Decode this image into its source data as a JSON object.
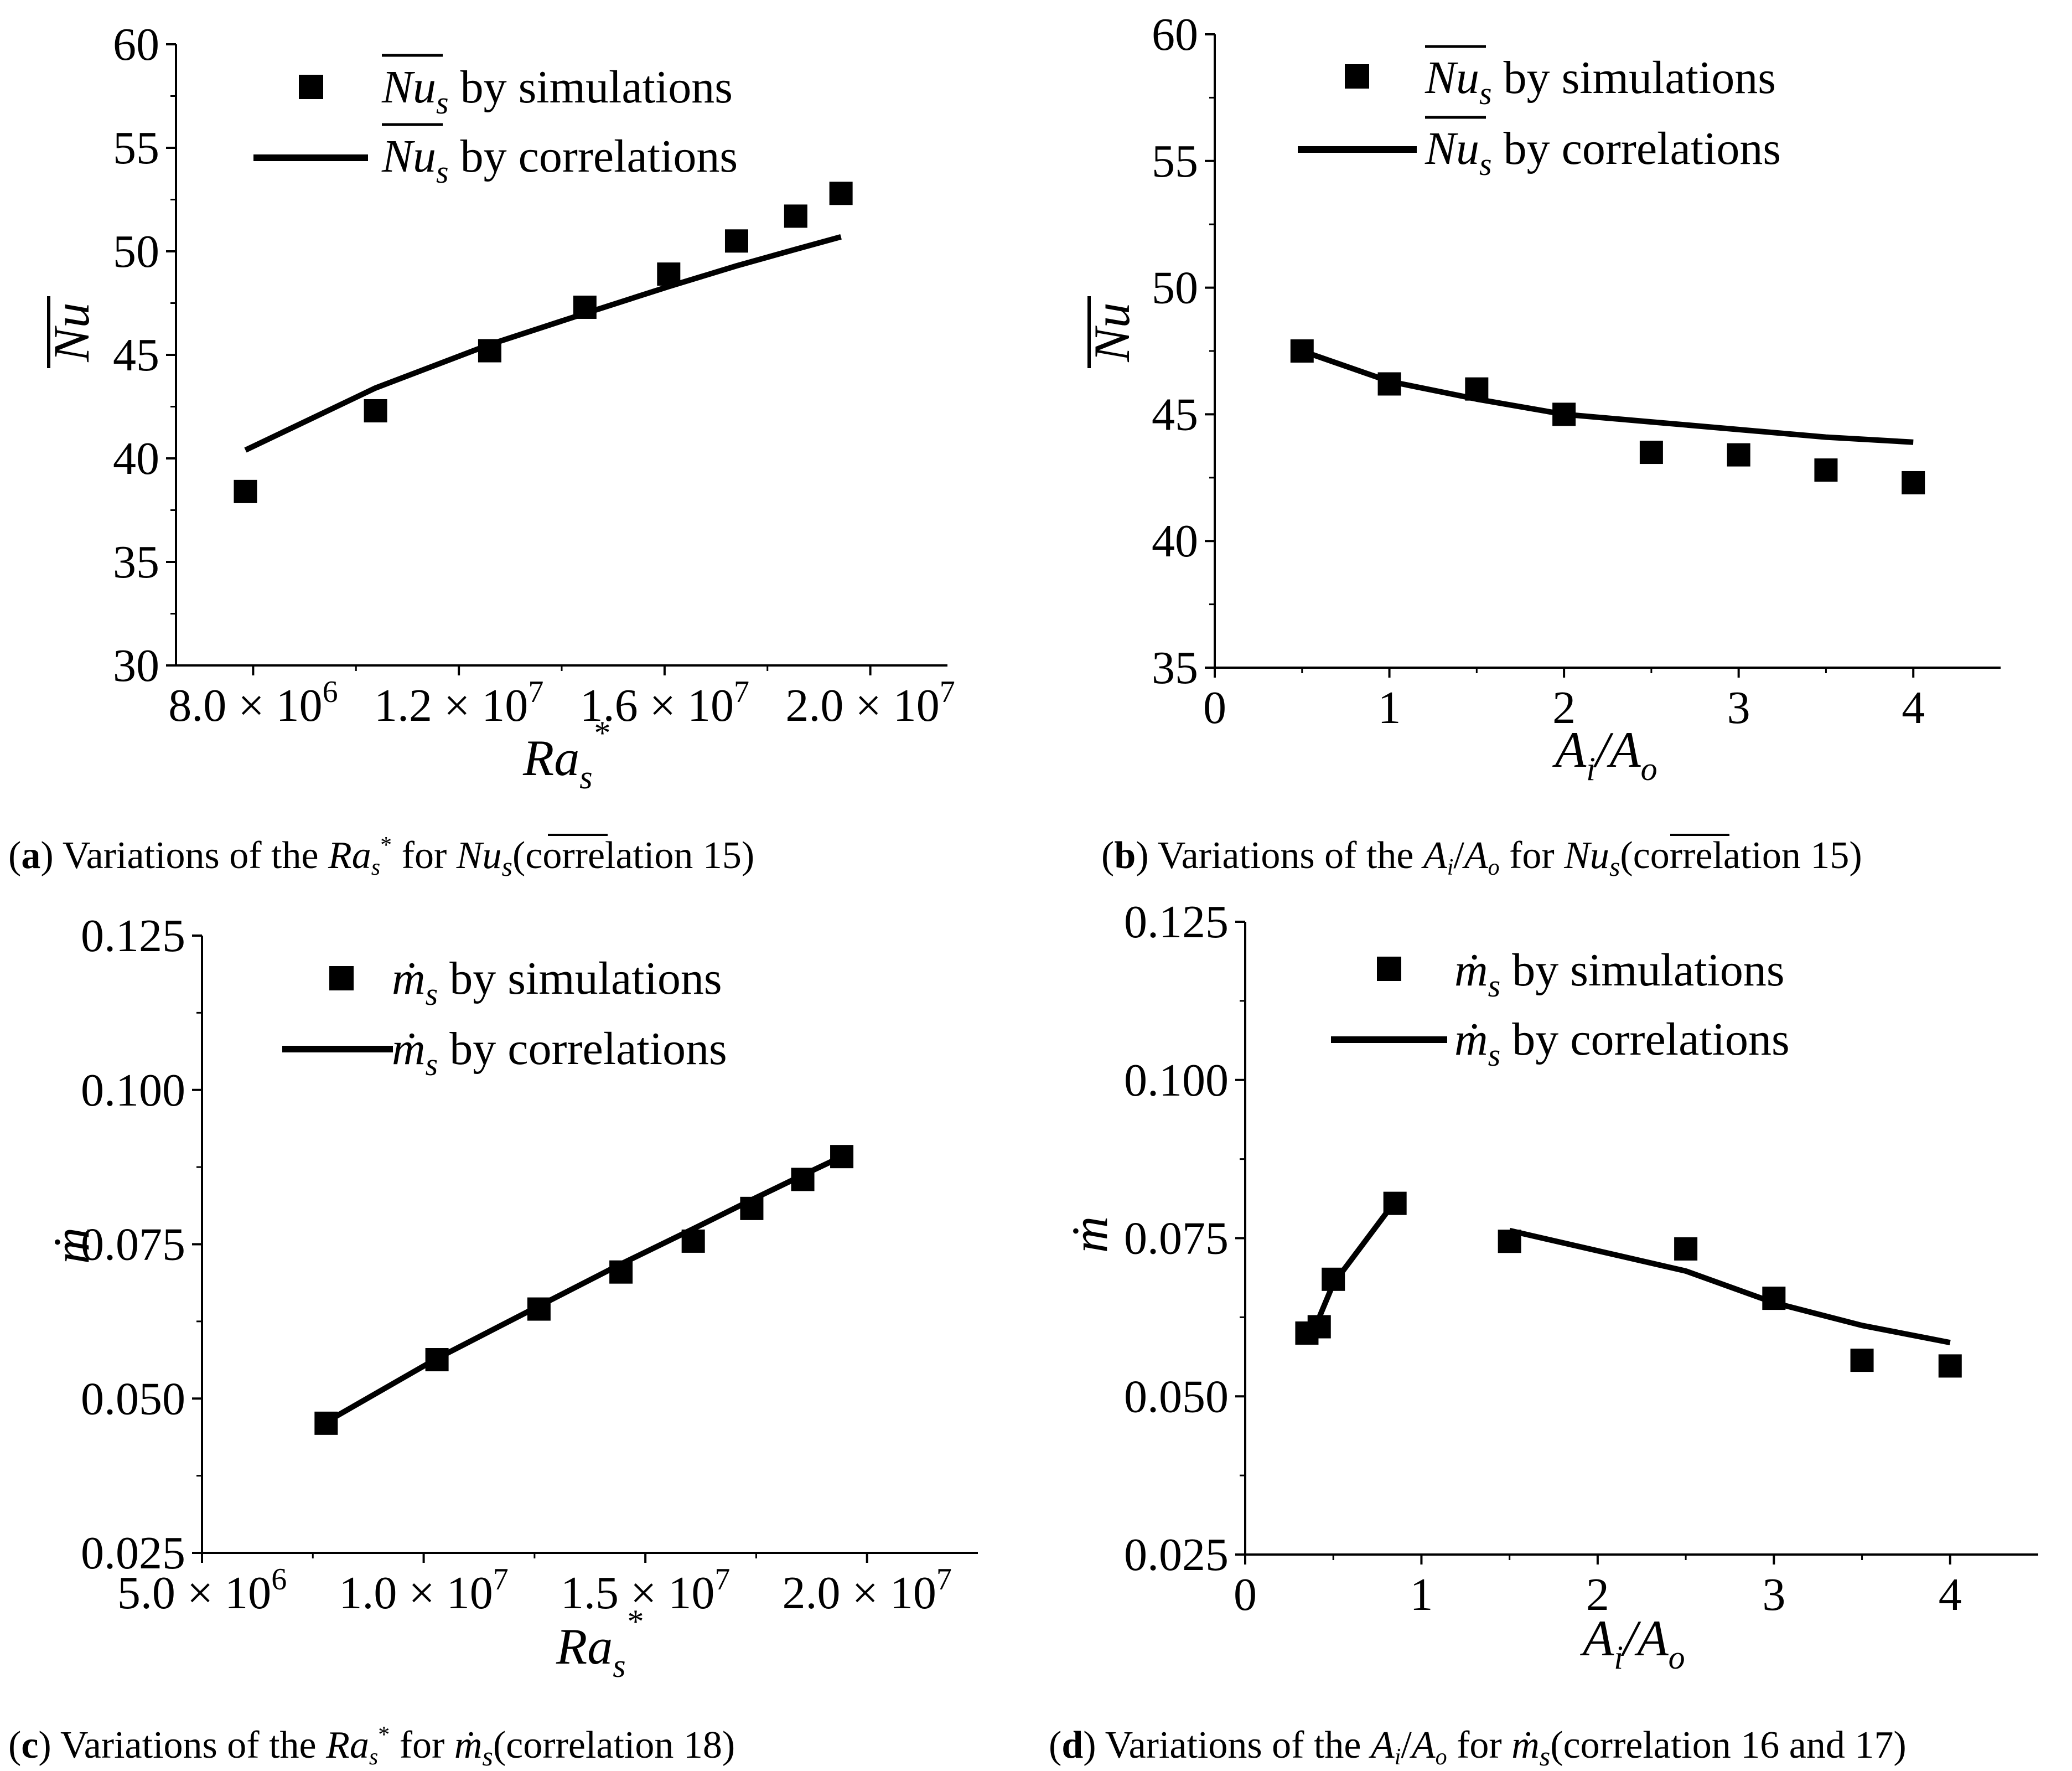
{
  "figure": {
    "panels": [
      {
        "id": "a",
        "caption": {
          "letter": "a",
          "pre": "Variations of the ",
          "var_base": "Ra",
          "var_sub": "s",
          "var_sup": "*",
          "mid": " for ",
          "quant_base": "Nu",
          "quant_sub": "s",
          "post": "(correlation 15)"
        },
        "legend": {
          "marker_label_base": "Nu",
          "marker_label_sub": "s",
          "marker_label_rest": " by simulations",
          "line_label_base": "Nu",
          "line_label_sub": "s",
          "line_label_rest": " by correlations"
        },
        "ylabel": "Nu",
        "xlabel_base": "Ra",
        "xlabel_sub": "s",
        "xlabel_sup": "*",
        "xtick_labels": [
          {
            "mant": "8.0 × 10",
            "exp": "6"
          },
          {
            "mant": "1.2 × 10",
            "exp": "7"
          },
          {
            "mant": "1.6 × 10",
            "exp": "7"
          },
          {
            "mant": "2.0 × 10",
            "exp": "7"
          }
        ],
        "ytick_labels": [
          "30",
          "35",
          "40",
          "45",
          "50",
          "55",
          "60"
        ]
      },
      {
        "id": "b",
        "caption": {
          "letter": "b",
          "pre": "Variations of the ",
          "var_a": "A",
          "var_a_sub": "i",
          "slash": "/",
          "var_b": "A",
          "var_b_sub": "o",
          "mid": " for ",
          "quant_base": "Nu",
          "quant_sub": "s",
          "post": "(correlation 15)"
        },
        "legend": {
          "marker_label_base": "Nu",
          "marker_label_sub": "s",
          "marker_label_rest": " by simulations",
          "line_label_base": "Nu",
          "line_label_sub": "s",
          "line_label_rest": " by correlations"
        },
        "ylabel": "Nu",
        "xlabel_a": "A",
        "xlabel_a_sub": "i",
        "xlabel_slash": "/",
        "xlabel_b": "A",
        "xlabel_b_sub": "o",
        "xtick_labels": [
          "0",
          "1",
          "2",
          "3",
          "4"
        ],
        "ytick_labels": [
          "35",
          "40",
          "45",
          "50",
          "55",
          "60"
        ]
      },
      {
        "id": "c",
        "caption": {
          "letter": "c",
          "pre": "Variations of the ",
          "var_base": "Ra",
          "var_sub": "s",
          "var_sup": "*",
          "mid": " for ",
          "quant_base": "ṁ",
          "quant_sub": "s",
          "post": "(correlation 18)"
        },
        "legend": {
          "marker_label_base": "ṁ",
          "marker_label_sub": "s",
          "marker_label_rest": " by simulations",
          "line_label_base": "ṁ",
          "line_label_sub": "s",
          "line_label_rest": " by correlations"
        },
        "ylabel": "ṁ",
        "xlabel_base": "Ra",
        "xlabel_sub": "s",
        "xlabel_sup": "*",
        "xtick_labels": [
          {
            "mant": "5.0 × 10",
            "exp": "6"
          },
          {
            "mant": "1.0 × 10",
            "exp": "7"
          },
          {
            "mant": "1.5 × 10",
            "exp": "7"
          },
          {
            "mant": "2.0 × 10",
            "exp": "7"
          }
        ],
        "ytick_labels": [
          "0.025",
          "0.050",
          "0.075",
          "0.100",
          "0.125"
        ]
      },
      {
        "id": "d",
        "caption": {
          "letter": "d",
          "pre": "Variations of the ",
          "var_a": "A",
          "var_a_sub": "i",
          "slash": "/",
          "var_b": "A",
          "var_b_sub": "o",
          "mid": " for ",
          "quant_base": "ṁ",
          "quant_sub": "s",
          "post": "(correlation 16 and 17)"
        },
        "legend": {
          "marker_label_base": "ṁ",
          "marker_label_sub": "s",
          "marker_label_rest": " by simulations",
          "line_label_base": "ṁ",
          "line_label_sub": "s",
          "line_label_rest": " by correlations"
        },
        "ylabel": "ṁ",
        "xlabel_a": "A",
        "xlabel_a_sub": "i",
        "xlabel_slash": "/",
        "xlabel_b": "A",
        "xlabel_b_sub": "o",
        "xtick_labels": [
          "0",
          "1",
          "2",
          "3",
          "4"
        ],
        "ytick_labels": [
          "0.025",
          "0.050",
          "0.075",
          "0.100",
          "0.125"
        ]
      }
    ]
  },
  "chart_data": [
    {
      "panel": "a",
      "type": "scatter",
      "xlabel": "Ra_s*",
      "ylabel": "Nu (overline)",
      "xlim": [
        6500000,
        21500000
      ],
      "ylim": [
        30,
        60
      ],
      "xticks": [
        8000000,
        12000000,
        16000000,
        20000000
      ],
      "yticks": [
        30,
        35,
        40,
        45,
        50,
        55,
        60
      ],
      "series": [
        {
          "name": "Nu_s by simulations",
          "kind": "marker",
          "x": [
            7850000,
            10380000,
            12600000,
            14450000,
            16080000,
            17400000,
            18550000,
            19430000
          ],
          "y": [
            38.4,
            42.3,
            45.2,
            47.3,
            48.9,
            50.5,
            51.7,
            52.8
          ]
        },
        {
          "name": "Nu_s by correlations",
          "kind": "line",
          "x": [
            7850000,
            10380000,
            12600000,
            14450000,
            16080000,
            17400000,
            18550000,
            19430000
          ],
          "y": [
            40.4,
            43.4,
            45.5,
            47.0,
            48.3,
            49.3,
            50.1,
            50.7
          ]
        }
      ]
    },
    {
      "panel": "b",
      "type": "scatter",
      "xlabel": "A_i/A_o",
      "ylabel": "Nu (overline)",
      "xlim": [
        0,
        4.5
      ],
      "ylim": [
        35,
        60
      ],
      "xticks": [
        0,
        1,
        2,
        3,
        4
      ],
      "yticks": [
        35,
        40,
        45,
        50,
        55,
        60
      ],
      "series": [
        {
          "name": "Nu_s by simulations",
          "kind": "marker",
          "x": [
            0.5,
            1.0,
            1.5,
            2.0,
            2.5,
            3.0,
            3.5,
            4.0
          ],
          "y": [
            47.5,
            46.2,
            46.0,
            45.0,
            43.5,
            43.4,
            42.8,
            42.3
          ]
        },
        {
          "name": "Nu_s by correlations",
          "kind": "line",
          "x": [
            0.5,
            1.0,
            1.5,
            2.0,
            2.5,
            3.0,
            3.5,
            4.0
          ],
          "y": [
            47.5,
            46.3,
            45.6,
            45.0,
            44.7,
            44.4,
            44.1,
            43.9
          ]
        }
      ]
    },
    {
      "panel": "c",
      "type": "scatter",
      "xlabel": "Ra_s*",
      "ylabel": "m-dot",
      "xlim": [
        5000000,
        22500000
      ],
      "ylim": [
        0.025,
        0.125
      ],
      "xticks": [
        5000000,
        10000000,
        15000000,
        20000000
      ],
      "yticks": [
        0.025,
        0.05,
        0.075,
        0.1,
        0.125
      ],
      "series": [
        {
          "name": "m_s by simulations",
          "kind": "marker",
          "x": [
            7800000,
            10300000,
            12600000,
            14450000,
            16080000,
            17400000,
            18550000,
            19430000
          ],
          "y": [
            0.046,
            0.0563,
            0.0645,
            0.0705,
            0.0755,
            0.0808,
            0.0855,
            0.0892
          ]
        },
        {
          "name": "m_s by correlations",
          "kind": "line",
          "x": [
            7800000,
            10300000,
            12600000,
            14450000,
            16080000,
            17400000,
            18550000,
            19430000
          ],
          "y": [
            0.0462,
            0.0565,
            0.065,
            0.0718,
            0.0775,
            0.0822,
            0.0862,
            0.0892
          ]
        }
      ]
    },
    {
      "panel": "d",
      "type": "scatter",
      "xlabel": "A_i/A_o",
      "ylabel": "m-dot",
      "xlim": [
        0,
        4.5
      ],
      "ylim": [
        0.025,
        0.125
      ],
      "xticks": [
        0,
        1,
        2,
        3,
        4
      ],
      "yticks": [
        0.025,
        0.05,
        0.075,
        0.1,
        0.125
      ],
      "series": [
        {
          "name": "m_s by simulations",
          "kind": "marker",
          "x": [
            0.35,
            0.42,
            0.5,
            0.85,
            1.5,
            2.5,
            3.0,
            3.5,
            4.0
          ],
          "y": [
            0.06,
            0.061,
            0.0685,
            0.0805,
            0.0745,
            0.0733,
            0.0655,
            0.0557,
            0.0548
          ]
        },
        {
          "name": "m_s by correlations (correlation 16)",
          "kind": "line",
          "x": [
            0.38,
            0.5,
            0.85
          ],
          "y": [
            0.0598,
            0.0678,
            0.0808
          ]
        },
        {
          "name": "m_s by correlations (correlation 17)",
          "kind": "line",
          "x": [
            1.5,
            2.5,
            3.0,
            3.5,
            4.0
          ],
          "y": [
            0.0762,
            0.0698,
            0.0648,
            0.0612,
            0.0585
          ]
        }
      ]
    }
  ]
}
